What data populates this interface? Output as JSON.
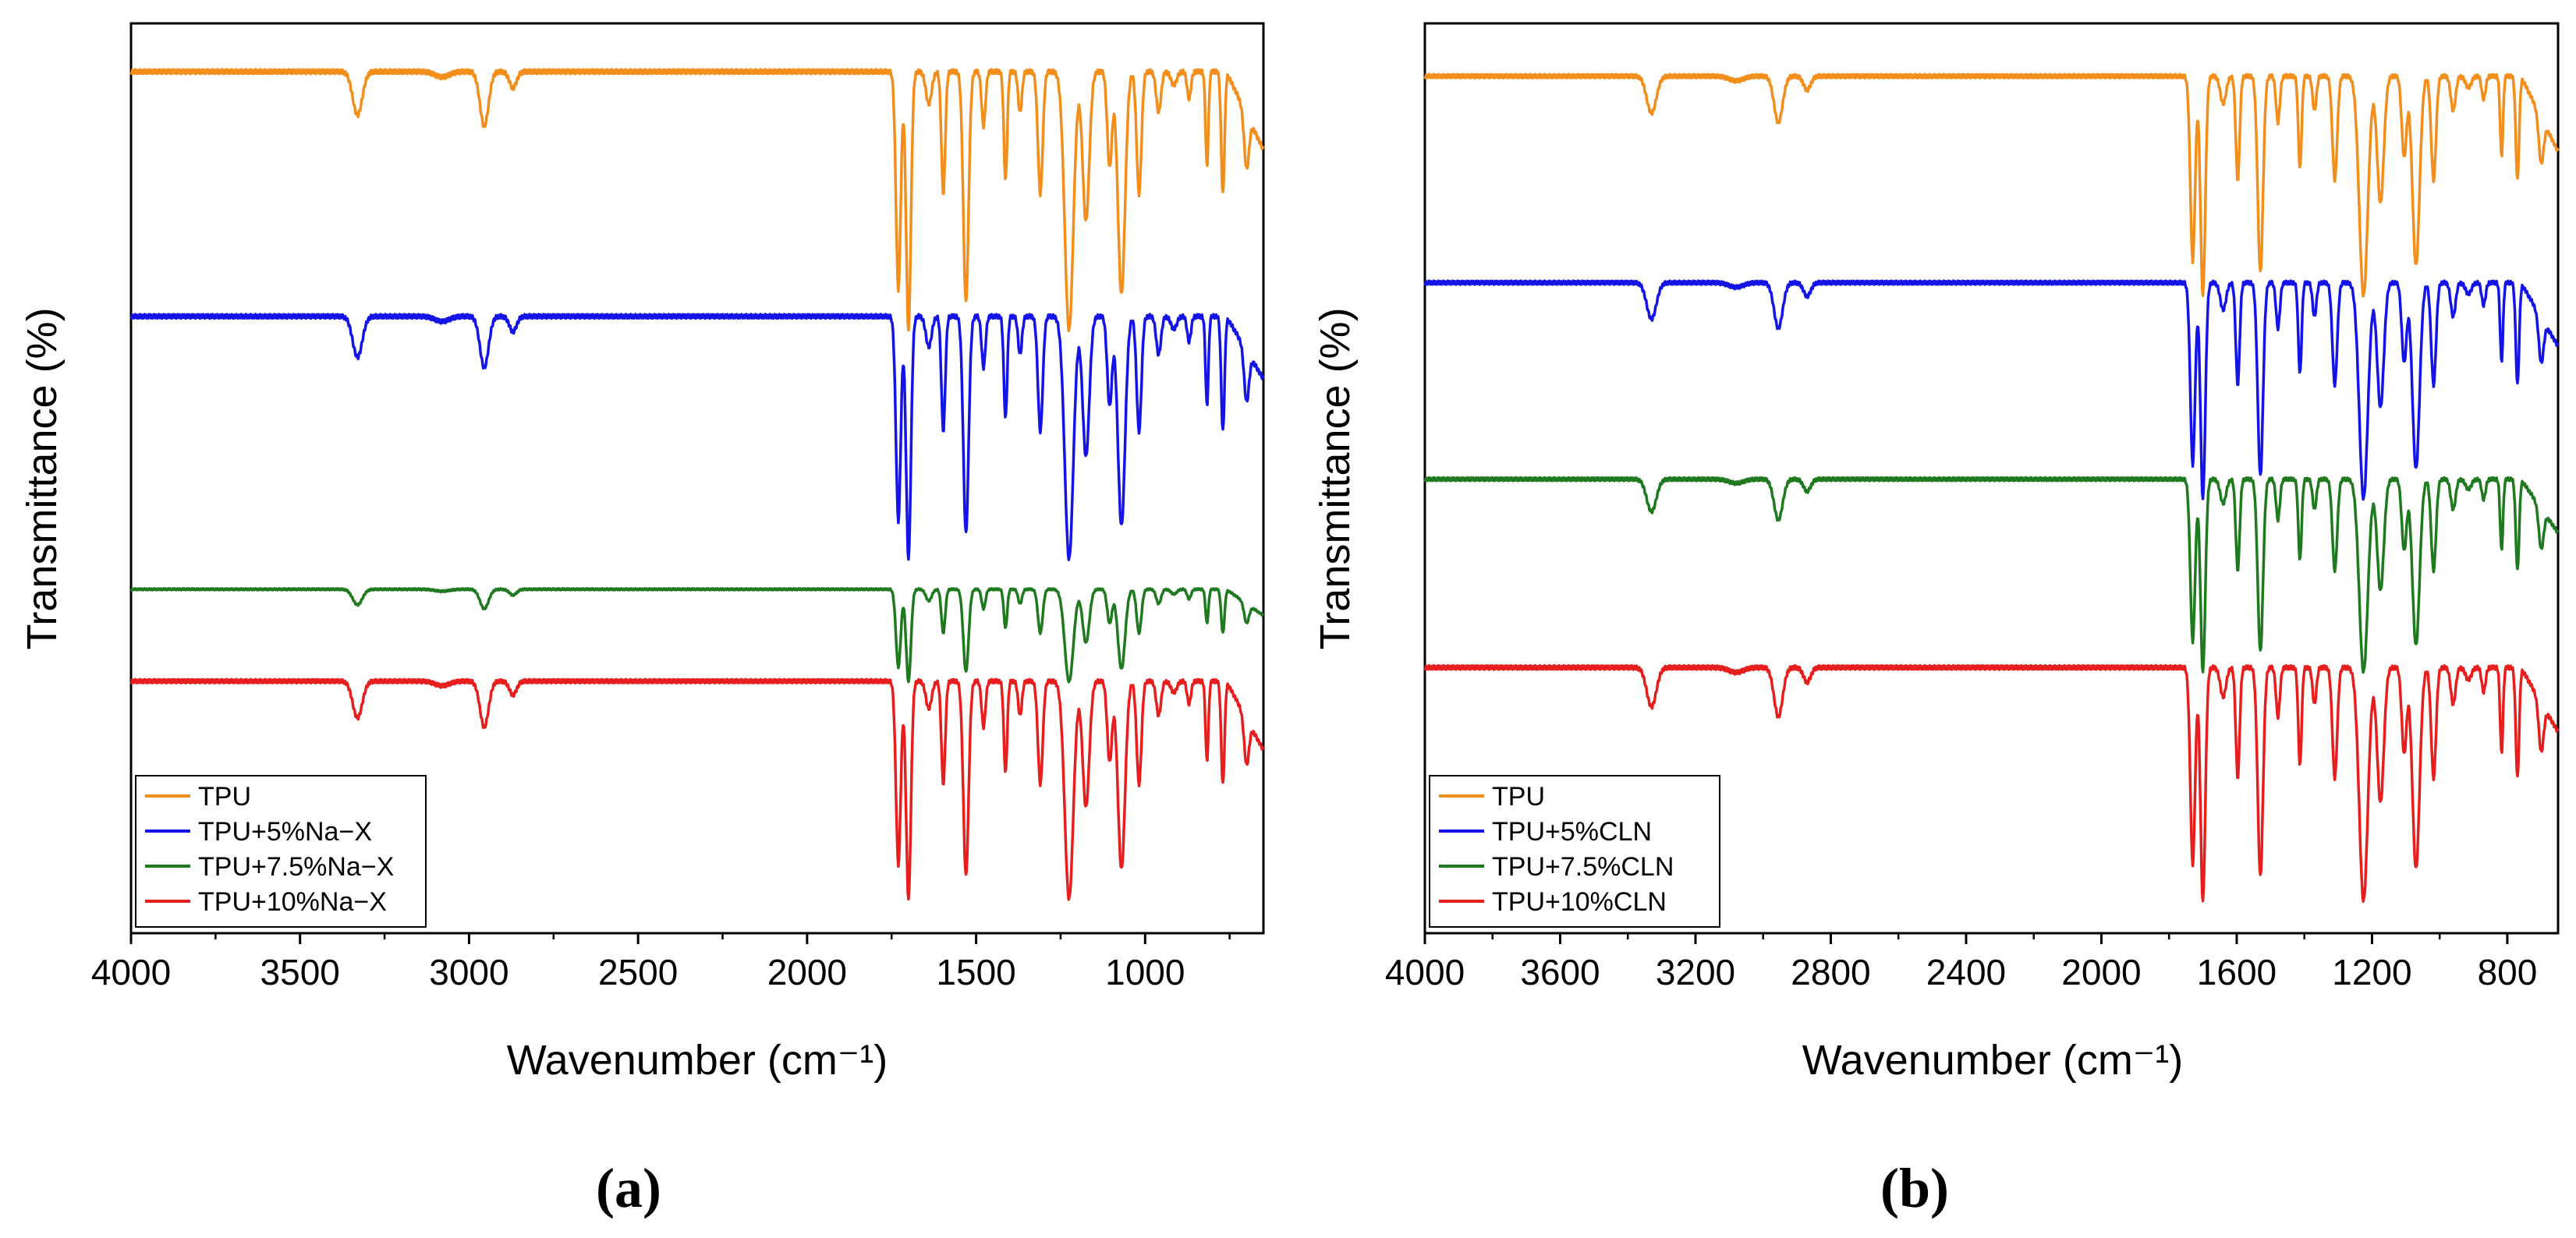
{
  "chart_data": [
    {
      "panel": "a",
      "caption": "(a)",
      "type": "line",
      "title": "",
      "xlabel": "Wavenumber (cm⁻¹)",
      "ylabel": "Transmittance (%)",
      "xlim": [
        4000,
        650
      ],
      "ylim": [
        0,
        1
      ],
      "x_ticks": [
        4000,
        3500,
        3000,
        2500,
        2000,
        1500,
        1000
      ],
      "x_tick_labels": [
        "4000",
        "3500",
        "3000",
        "2500",
        "2000",
        "1500",
        "1000"
      ],
      "x_minor_step": 250,
      "legend_position": "bottom-left",
      "series": [
        {
          "name": "TPU",
          "color": "#f28e1c",
          "baseline": 0.947,
          "depth": 0.299,
          "tail": 0.775
        },
        {
          "name": "TPU+5%Na−X",
          "color": "#1414e6",
          "baseline": 0.678,
          "depth": 0.281,
          "tail": 0.54
        },
        {
          "name": "TPU+7.5%Na−X",
          "color": "#1f7a1f",
          "baseline": 0.378,
          "depth": 0.107,
          "tail": 0.32
        },
        {
          "name": "TPU+10%Na−X",
          "color": "#e61e1e",
          "baseline": 0.277,
          "depth": 0.252,
          "tail": 0.125
        }
      ]
    },
    {
      "panel": "b",
      "caption": "(b)",
      "type": "line",
      "title": "",
      "xlabel": "Wavenumber (cm⁻¹)",
      "ylabel": "Transmittance (%)",
      "xlim": [
        4000,
        650
      ],
      "ylim": [
        0,
        1
      ],
      "x_ticks": [
        4000,
        3600,
        3200,
        2800,
        2400,
        2000,
        1600,
        1200,
        800
      ],
      "x_tick_labels": [
        "4000",
        "3600",
        "3200",
        "2800",
        "2400",
        "2000",
        "1600",
        "1200",
        "800"
      ],
      "x_minor_step": 200,
      "legend_position": "bottom-left",
      "series": [
        {
          "name": "TPU",
          "color": "#f28e1c",
          "baseline": 0.942,
          "depth": 0.254,
          "tail": 0.776
        },
        {
          "name": "TPU+5%CLN",
          "color": "#1414e6",
          "baseline": 0.715,
          "depth": 0.25,
          "tail": 0.575
        },
        {
          "name": "TPU+7.5%CLN",
          "color": "#1f7a1f",
          "baseline": 0.499,
          "depth": 0.223,
          "tail": 0.381
        },
        {
          "name": "TPU+10%CLN",
          "color": "#e61e1e",
          "baseline": 0.292,
          "depth": 0.27,
          "tail": 0.15
        }
      ]
    }
  ]
}
